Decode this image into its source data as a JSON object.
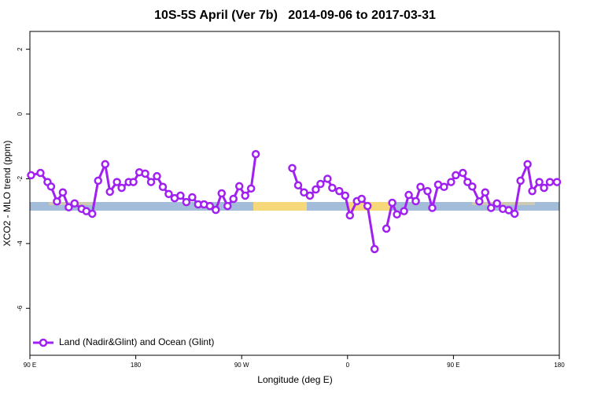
{
  "chart_data": {
    "type": "line",
    "title": "10S-5S April (Ver 7b)   2014-09-06 to 2017-03-31",
    "x_label": "Longitude (deg E)",
    "y_label": "XCO2 - MLO trend (ppm)",
    "xlim": [
      90,
      540
    ],
    "ylim": [
      -7.45,
      2.55
    ],
    "xticks": [
      {
        "value": 90,
        "label": "90 E"
      },
      180,
      {
        "value": 270,
        "label": "90 W"
      },
      {
        "value": 360,
        "label": "0"
      },
      {
        "value": 450,
        "label": "90 E"
      },
      {
        "value": 540,
        "label": "180"
      }
    ],
    "yticks": [
      2,
      0,
      -2,
      -4,
      -6
    ],
    "legend": "lower left",
    "x": [
      91,
      99,
      105,
      108,
      113,
      118,
      123,
      128,
      134,
      138,
      143,
      148,
      154,
      158,
      164,
      168,
      174,
      178,
      183,
      188,
      193,
      198,
      203,
      208,
      213,
      218,
      223,
      228,
      233,
      238,
      243,
      248,
      253,
      258,
      263,
      268,
      273,
      278,
      282,
      300,
      313,
      318,
      323,
      328,
      333,
      337,
      343,
      347,
      353,
      358,
      362,
      368,
      372,
      377,
      383,
      387,
      393,
      398,
      402,
      408,
      412,
      418,
      422,
      428,
      432,
      437,
      442,
      448,
      452,
      458,
      462,
      466,
      472,
      477,
      482,
      487,
      492,
      497,
      502,
      507,
      513,
      517,
      523,
      527,
      532,
      538
    ],
    "series": [
      {
        "name": "Land (Nadir&Glint) and Ocean (Glint)",
        "color": "#a020f0",
        "values": [
          -1.89,
          -1.82,
          -2.1,
          -2.24,
          -2.7,
          -2.42,
          -2.88,
          -2.76,
          -2.93,
          -3.0,
          -3.08,
          -2.06,
          -1.55,
          -2.4,
          -2.1,
          -2.28,
          -2.1,
          -2.1,
          -1.8,
          -1.84,
          -2.1,
          -1.92,
          -2.25,
          -2.47,
          -2.6,
          -2.52,
          -2.72,
          -2.57,
          -2.79,
          -2.79,
          -2.84,
          -2.96,
          -2.45,
          -2.84,
          -2.62,
          -2.23,
          -2.52,
          -2.3,
          -1.24,
          null,
          -1.67,
          -2.2,
          -2.42,
          -2.52,
          -2.33,
          -2.16,
          -2.0,
          -2.28,
          -2.38,
          -2.52,
          -3.13,
          -2.69,
          -2.62,
          -2.84,
          -4.17,
          null,
          -3.54,
          -2.74,
          -3.1,
          -3.0,
          -2.5,
          -2.69,
          -2.25,
          -2.38,
          -2.9,
          -2.18,
          -2.25,
          -2.1,
          -1.89,
          -1.82,
          -2.1,
          -2.24,
          -2.7,
          -2.42,
          -2.9,
          -2.76,
          -2.93,
          -2.97,
          -3.08,
          -2.06,
          -1.55,
          -2.38,
          -2.1,
          -2.28,
          -2.1,
          -2.1
        ]
      }
    ]
  }
}
